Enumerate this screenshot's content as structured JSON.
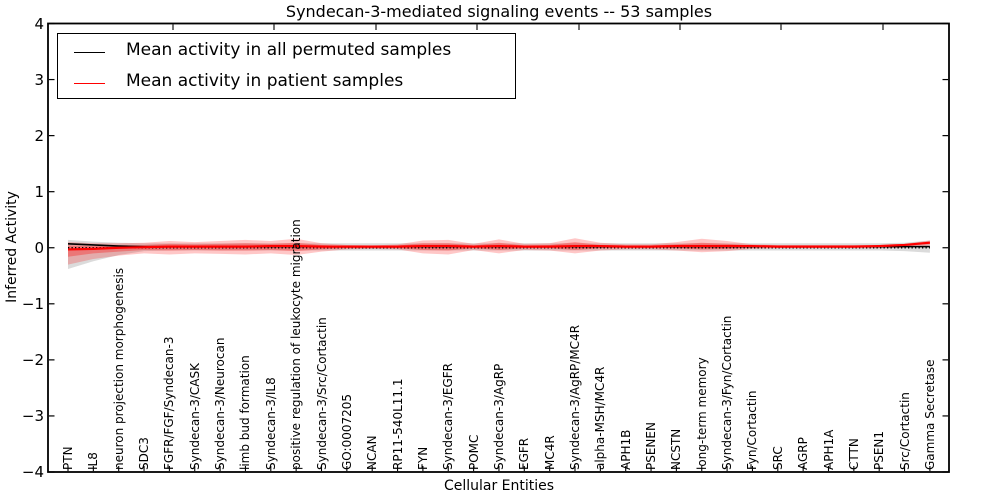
{
  "figure": {
    "title": "Syndecan-3-mediated signaling events -- 53 samples",
    "xlabel": "Cellular Entities",
    "ylabel": "Inferred Activity"
  },
  "legend": {
    "items": [
      {
        "label": "Mean activity in all permuted samples",
        "color": "#000000"
      },
      {
        "label": "Mean activity in patient samples",
        "color": "#ff0000"
      }
    ]
  },
  "chart_data": {
    "type": "line",
    "title": "Syndecan-3-mediated signaling events -- 53 samples",
    "xlabel": "Cellular Entities",
    "ylabel": "Inferred Activity",
    "ylim": [
      -4,
      4
    ],
    "ytick_values": [
      -4,
      -3,
      -2,
      -1,
      0,
      1,
      2,
      3,
      4
    ],
    "ytick_labels": [
      "−4",
      "−3",
      "−2",
      "−1",
      "0",
      "1",
      "2",
      "3",
      "4"
    ],
    "grid": false,
    "legend_position": "upper left",
    "baseline": 0,
    "categories": [
      "PTN",
      "IL8",
      "neuron projection morphogenesis",
      "SDC3",
      "FGFR/FGF/Syndecan-3",
      "Syndecan-3/CASK",
      "Syndecan-3/Neurocan",
      "limb bud formation",
      "Syndecan-3/IL8",
      "positive regulation of leukocyte migration",
      "Syndecan-3/Src/Cortactin",
      "GO:0007205",
      "NCAN",
      "RP11-540L11.1",
      "FYN",
      "Syndecan-3/EGFR",
      "POMC",
      "Syndecan-3/AgRP",
      "EGFR",
      "MC4R",
      "Syndecan-3/AgRP/MC4R",
      "alpha-MSH/MC4R",
      "APH1B",
      "PSENEN",
      "NCSTN",
      "long-term memory",
      "Syndecan-3/Fyn/Cortactin",
      "Fyn/Cortactin",
      "SRC",
      "AGRP",
      "APH1A",
      "CTTN",
      "PSEN1",
      "Src/Cortactin",
      "Gamma Secretase"
    ],
    "series": [
      {
        "name": "Mean activity in all permuted samples",
        "color": "#000000",
        "style": "solid",
        "width": 1.6,
        "values": [
          0.07,
          0.05,
          0.03,
          0.02,
          0.02,
          0.02,
          0.02,
          0.02,
          0.02,
          0.02,
          0.02,
          0.02,
          0.02,
          0.02,
          0.02,
          0.02,
          0.02,
          0.02,
          0.02,
          0.02,
          0.02,
          0.02,
          0.02,
          0.02,
          0.02,
          0.02,
          0.02,
          0.02,
          0.02,
          0.02,
          0.02,
          0.02,
          0.02,
          0.02,
          0.02
        ]
      },
      {
        "name": "Mean activity in patient samples",
        "color": "#ff0000",
        "style": "solid",
        "width": 2.2,
        "values": [
          -0.03,
          -0.02,
          0.0,
          0.01,
          0.02,
          0.02,
          0.02,
          0.02,
          0.03,
          0.03,
          0.02,
          0.02,
          0.02,
          0.02,
          0.03,
          0.03,
          0.02,
          0.03,
          0.02,
          0.02,
          0.03,
          0.03,
          0.02,
          0.02,
          0.03,
          0.03,
          0.03,
          0.03,
          0.02,
          0.02,
          0.02,
          0.02,
          0.03,
          0.05,
          0.09
        ]
      }
    ],
    "bands": [
      {
        "name": "permuted-samples-std-band",
        "color": "#999999",
        "opacity": 0.35,
        "upper": [
          0.14,
          0.11,
          0.09,
          0.08,
          0.08,
          0.08,
          0.08,
          0.08,
          0.08,
          0.08,
          0.08,
          0.08,
          0.08,
          0.08,
          0.08,
          0.08,
          0.08,
          0.08,
          0.08,
          0.08,
          0.08,
          0.08,
          0.08,
          0.08,
          0.08,
          0.08,
          0.08,
          0.08,
          0.08,
          0.08,
          0.08,
          0.08,
          0.08,
          0.09,
          0.13
        ],
        "lower": [
          -0.38,
          -0.24,
          -0.13,
          -0.06,
          -0.05,
          -0.05,
          -0.05,
          -0.05,
          -0.05,
          -0.05,
          -0.05,
          -0.05,
          -0.05,
          -0.05,
          -0.05,
          -0.05,
          -0.05,
          -0.05,
          -0.05,
          -0.05,
          -0.05,
          -0.05,
          -0.05,
          -0.05,
          -0.05,
          -0.05,
          -0.05,
          -0.05,
          -0.05,
          -0.05,
          -0.05,
          -0.05,
          -0.05,
          -0.06,
          -0.09
        ]
      },
      {
        "name": "patient-samples-std-outer-band",
        "color": "#ff0000",
        "opacity": 0.22,
        "upper": [
          0.1,
          0.08,
          0.08,
          0.09,
          0.12,
          0.1,
          0.12,
          0.14,
          0.12,
          0.16,
          0.08,
          0.05,
          0.04,
          0.06,
          0.13,
          0.14,
          0.07,
          0.15,
          0.07,
          0.08,
          0.17,
          0.09,
          0.06,
          0.06,
          0.1,
          0.16,
          0.12,
          0.06,
          0.05,
          0.05,
          0.05,
          0.05,
          0.05,
          0.07,
          0.13
        ],
        "lower": [
          -0.3,
          -0.2,
          -0.14,
          -0.1,
          -0.12,
          -0.1,
          -0.11,
          -0.12,
          -0.1,
          -0.13,
          -0.07,
          -0.03,
          -0.02,
          -0.03,
          -0.1,
          -0.12,
          -0.04,
          -0.1,
          -0.04,
          -0.05,
          -0.1,
          -0.05,
          -0.03,
          -0.03,
          -0.05,
          -0.08,
          -0.06,
          -0.02,
          -0.01,
          -0.01,
          -0.01,
          -0.01,
          -0.01,
          0.0,
          0.04
        ]
      },
      {
        "name": "patient-samples-std-inner-band",
        "color": "#ff0000",
        "opacity": 0.3,
        "upper": [
          0.04,
          0.03,
          0.04,
          0.05,
          0.07,
          0.06,
          0.07,
          0.08,
          0.07,
          0.09,
          0.05,
          0.03,
          0.03,
          0.04,
          0.08,
          0.08,
          0.04,
          0.09,
          0.04,
          0.05,
          0.1,
          0.05,
          0.04,
          0.04,
          0.06,
          0.09,
          0.07,
          0.04,
          0.03,
          0.03,
          0.03,
          0.03,
          0.04,
          0.06,
          0.11
        ],
        "lower": [
          -0.16,
          -0.1,
          -0.07,
          -0.04,
          -0.05,
          -0.04,
          -0.05,
          -0.05,
          -0.04,
          -0.06,
          -0.03,
          -0.01,
          -0.01,
          -0.01,
          -0.04,
          -0.05,
          -0.01,
          -0.04,
          -0.01,
          -0.01,
          -0.04,
          -0.01,
          0.0,
          0.0,
          -0.01,
          -0.03,
          -0.02,
          0.0,
          0.01,
          0.01,
          0.01,
          0.01,
          0.01,
          0.03,
          0.07
        ]
      }
    ]
  }
}
